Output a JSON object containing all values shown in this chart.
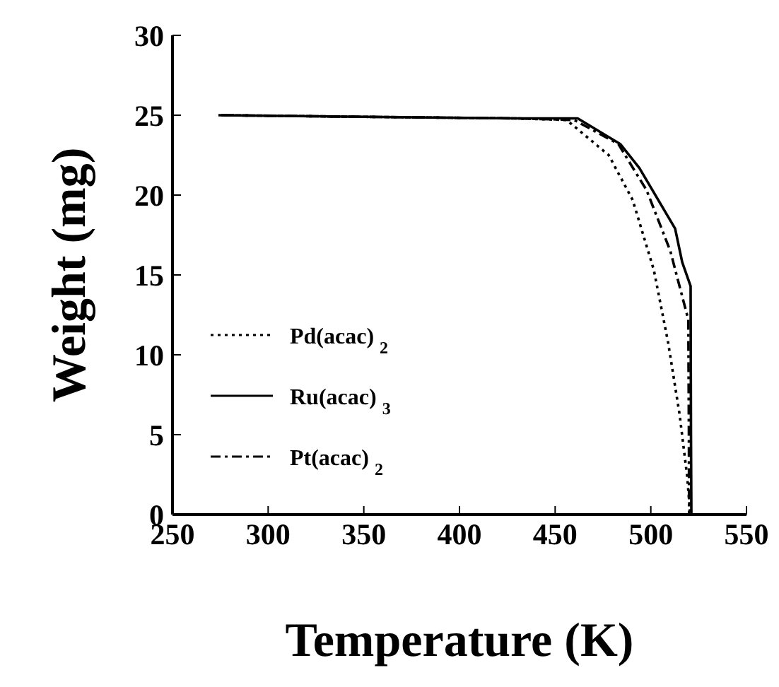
{
  "chart_data": {
    "type": "line",
    "xlabel": "Temperature (K)",
    "ylabel": "Weight (mg)",
    "xlim": [
      250,
      550
    ],
    "xticks": [
      250,
      300,
      350,
      400,
      450,
      500,
      550
    ],
    "ylim": [
      0,
      30
    ],
    "yticks": [
      0,
      5,
      10,
      15,
      20,
      25,
      30
    ],
    "grid": false,
    "legend": "bottom left",
    "marker": "none",
    "series": [
      {
        "name": "Pd(acac)$_{2}$",
        "color": "#000000",
        "line_style": "dotted",
        "x": [
          277,
          350,
          430,
          456,
          478,
          490.5,
          501.6,
          509,
          515,
          519,
          520.6
        ],
        "values": [
          25,
          24.9,
          24.8,
          24.7,
          22.5,
          19.7,
          15.3,
          10.8,
          6.3,
          2.4,
          0
        ]
      },
      {
        "name": "Ru(acac)$_{3}$",
        "color": "#000000",
        "line_style": "solid",
        "x": [
          274,
          350,
          430,
          461.8,
          484,
          494,
          512.7,
          516.4,
          520.8,
          521,
          521.2
        ],
        "values": [
          25,
          24.9,
          24.8,
          24.8,
          23.2,
          21.7,
          17.9,
          15.8,
          14.3,
          5,
          0
        ]
      },
      {
        "name": "Pt(acac)$_{2}$",
        "color": "#000000",
        "line_style": "dashdot",
        "x": [
          275.5,
          350,
          430,
          460,
          483,
          497.8,
          510.2,
          515,
          519.6,
          519.9,
          520
        ],
        "values": [
          25,
          24.9,
          24.8,
          24.7,
          23.2,
          20.3,
          16.5,
          14.3,
          12.2,
          5,
          0
        ]
      }
    ]
  }
}
